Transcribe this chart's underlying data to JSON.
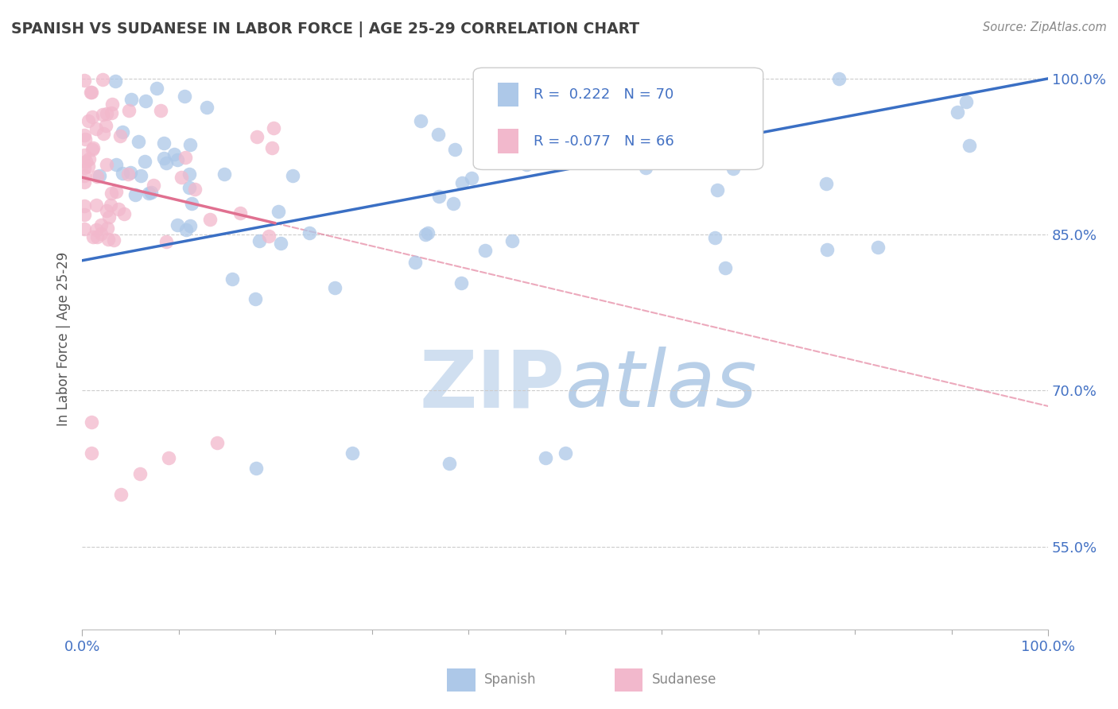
{
  "title": "SPANISH VS SUDANESE IN LABOR FORCE | AGE 25-29 CORRELATION CHART",
  "source": "Source: ZipAtlas.com",
  "ylabel": "In Labor Force | Age 25-29",
  "xlim": [
    0.0,
    1.0
  ],
  "ylim": [
    0.47,
    1.03
  ],
  "ytick_vals": [
    0.55,
    0.7,
    0.85,
    1.0
  ],
  "ytick_labels": [
    "55.0%",
    "70.0%",
    "85.0%",
    "100.0%"
  ],
  "xtick_vals": [
    0.0,
    1.0
  ],
  "xtick_labels": [
    "0.0%",
    "100.0%"
  ],
  "legend_r_spanish": "0.222",
  "legend_n_spanish": "70",
  "legend_r_sudanese": "-0.077",
  "legend_n_sudanese": "66",
  "spanish_color": "#adc8e8",
  "sudanese_color": "#f2b8cc",
  "spanish_line_color": "#3a6fc4",
  "sudanese_line_color": "#e07090",
  "grid_color": "#cccccc",
  "background_color": "#ffffff",
  "title_color": "#404040",
  "source_color": "#888888",
  "tick_color": "#4472c4",
  "ylabel_color": "#555555",
  "watermark_color": "#d0dff0",
  "legend_text_color": "#4472c4",
  "bottom_legend_color": "#888888",
  "spanish_line_start_x": 0.0,
  "spanish_line_start_y": 0.825,
  "spanish_line_end_x": 1.0,
  "spanish_line_end_y": 1.0,
  "sudanese_line_start_x": 0.0,
  "sudanese_line_start_y": 0.905,
  "sudanese_line_end_x": 1.0,
  "sudanese_line_end_y": 0.685
}
